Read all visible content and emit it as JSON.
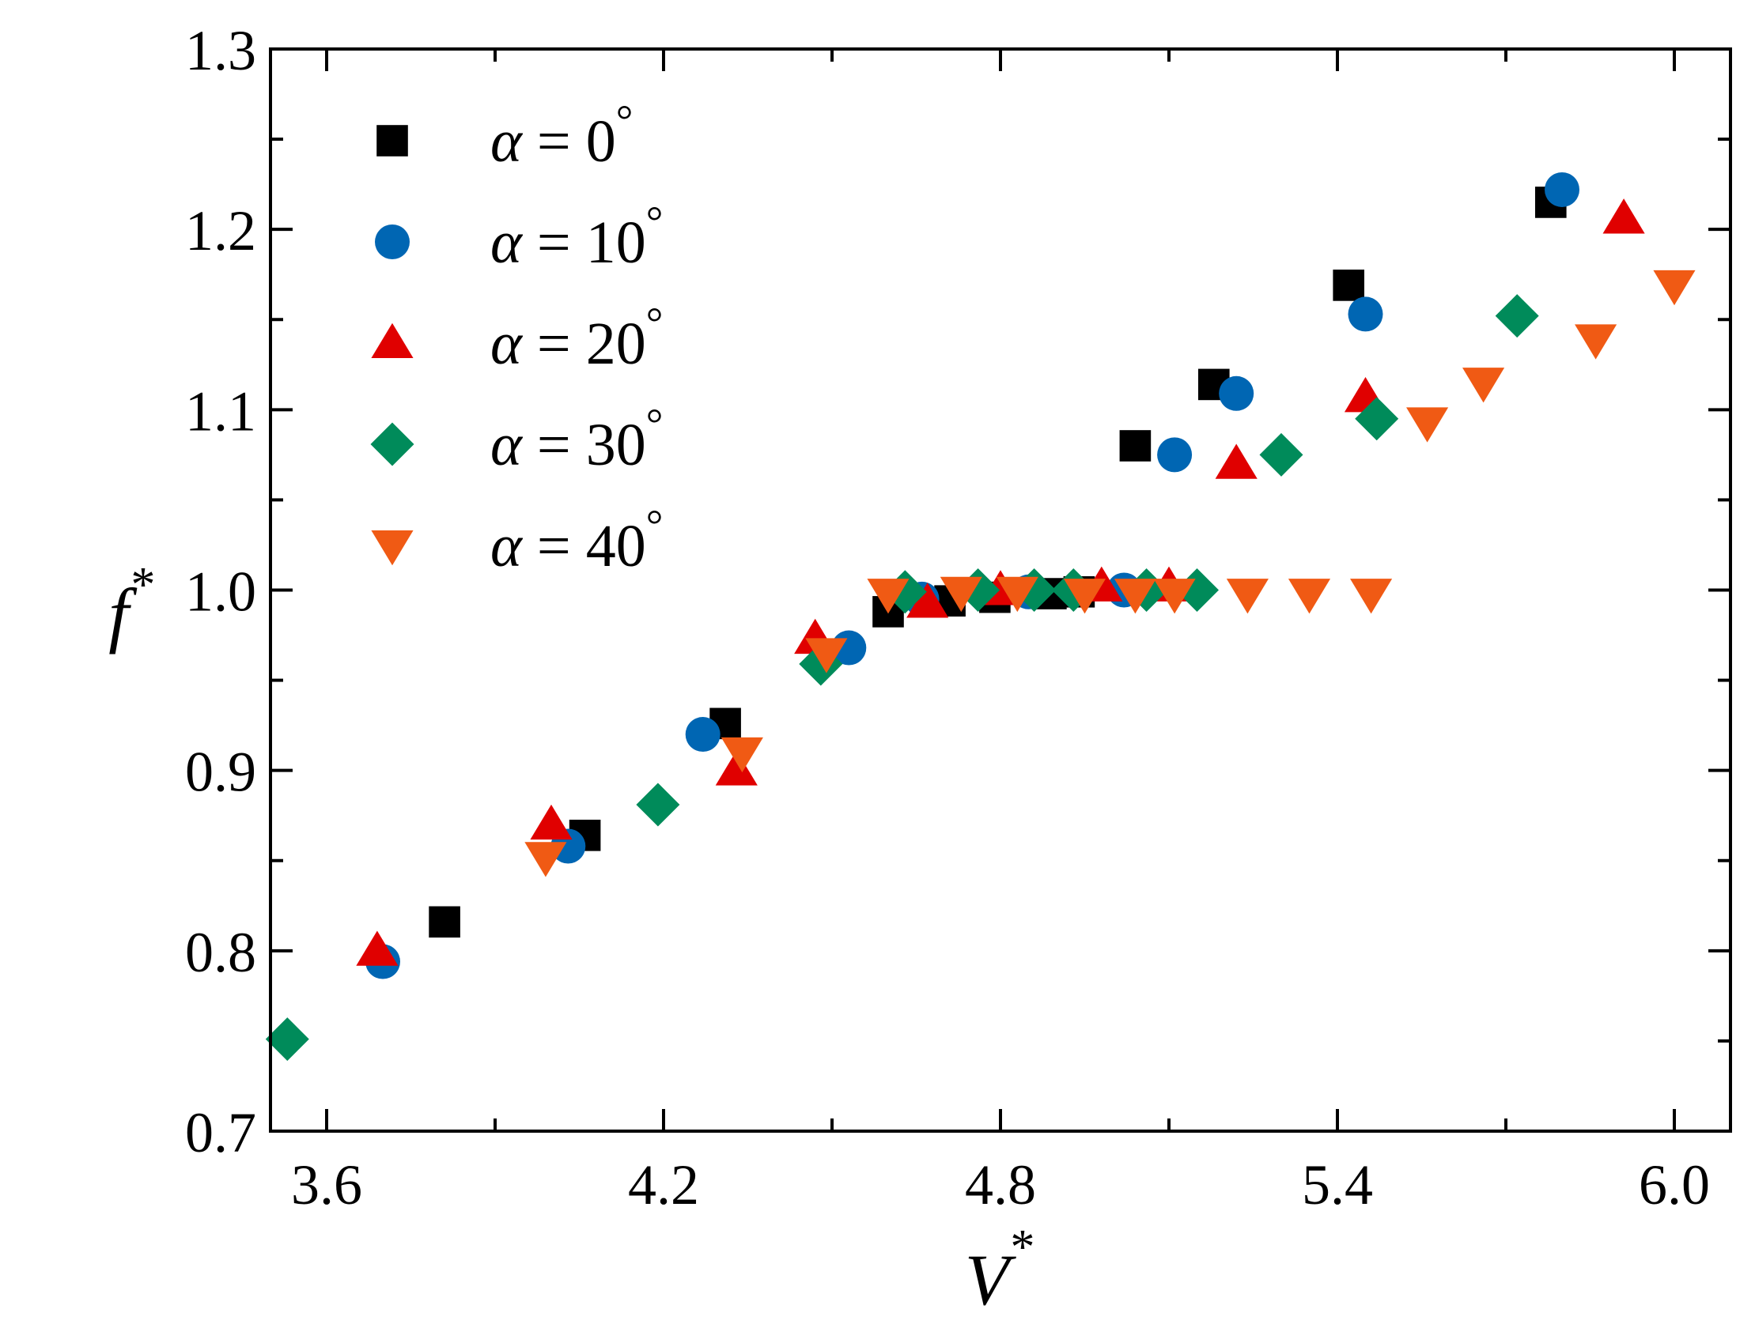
{
  "chart_data": {
    "type": "scatter",
    "title": "",
    "xlabel": "V",
    "xlabel_sup": "*",
    "ylabel": "f",
    "ylabel_sup": "*",
    "xlim": [
      3.5,
      6.1
    ],
    "ylim": [
      0.7,
      1.3
    ],
    "xticks": [
      3.6,
      4.2,
      4.8,
      5.4,
      6.0
    ],
    "xtick_labels": [
      "3.6",
      "4.2",
      "4.8",
      "5.4",
      "6.0"
    ],
    "yticks": [
      0.7,
      0.8,
      0.9,
      1.0,
      1.1,
      1.2,
      1.3
    ],
    "ytick_labels": [
      "0.7",
      "0.8",
      "0.9",
      "1.0",
      "1.1",
      "1.2",
      "1.3"
    ],
    "grid": false,
    "legend_position": "top-left",
    "series": [
      {
        "name": "α = 0°",
        "label_alpha": "α",
        "label_eq": "= 0",
        "label_deg": "°",
        "marker": "square",
        "color": "#000000",
        "x": [
          3.81,
          4.06,
          4.31,
          4.6,
          4.71,
          4.79,
          4.89,
          4.94,
          5.04,
          5.18,
          5.42,
          5.78
        ],
        "y": [
          0.816,
          0.864,
          0.926,
          0.988,
          0.994,
          0.996,
          0.998,
          0.999,
          1.08,
          1.114,
          1.169,
          1.215
        ]
      },
      {
        "name": "α = 10°",
        "label_alpha": "α",
        "label_eq": "= 10",
        "label_deg": "°",
        "marker": "circle",
        "color": "#0066B3",
        "x": [
          3.7,
          4.03,
          4.27,
          4.53,
          4.66,
          4.85,
          5.02,
          5.11,
          5.22,
          5.45,
          5.8
        ],
        "y": [
          0.794,
          0.858,
          0.92,
          0.968,
          0.995,
          0.999,
          1.0,
          1.075,
          1.109,
          1.153,
          1.222
        ]
      },
      {
        "name": "α = 20°",
        "label_alpha": "α",
        "label_eq": "= 20",
        "label_deg": "°",
        "marker": "triangle-up",
        "color": "#E00000",
        "x": [
          3.69,
          4.0,
          4.33,
          4.47,
          4.67,
          4.8,
          4.98,
          5.1,
          5.22,
          5.45,
          5.91
        ],
        "y": [
          0.8,
          0.87,
          0.9,
          0.973,
          0.993,
          1.0,
          1.002,
          1.002,
          1.07,
          1.107,
          1.206
        ]
      },
      {
        "name": "α = 30°",
        "label_alpha": "α",
        "label_eq": "= 30",
        "label_deg": "°",
        "marker": "diamond",
        "color": "#008B5A",
        "x": [
          3.53,
          4.19,
          4.48,
          4.63,
          4.76,
          4.86,
          4.93,
          5.06,
          5.15,
          5.3,
          5.47,
          5.72
        ],
        "y": [
          0.751,
          0.881,
          0.959,
          0.999,
          1.0,
          1.0,
          1.0,
          1.0,
          1.0,
          1.075,
          1.095,
          1.152
        ]
      },
      {
        "name": "α = 40°",
        "label_alpha": "α",
        "label_eq": "= 40",
        "label_deg": "°",
        "marker": "triangle-down",
        "color": "#F05A14",
        "x": [
          3.99,
          4.34,
          4.49,
          4.6,
          4.73,
          4.83,
          4.95,
          5.04,
          5.11,
          5.24,
          5.35,
          5.46,
          5.56,
          5.66,
          5.86,
          6.0
        ],
        "y": [
          0.852,
          0.91,
          0.965,
          0.998,
          0.999,
          0.999,
          0.998,
          0.998,
          0.998,
          0.998,
          0.998,
          0.998,
          1.093,
          1.115,
          1.139,
          1.169
        ]
      }
    ]
  }
}
